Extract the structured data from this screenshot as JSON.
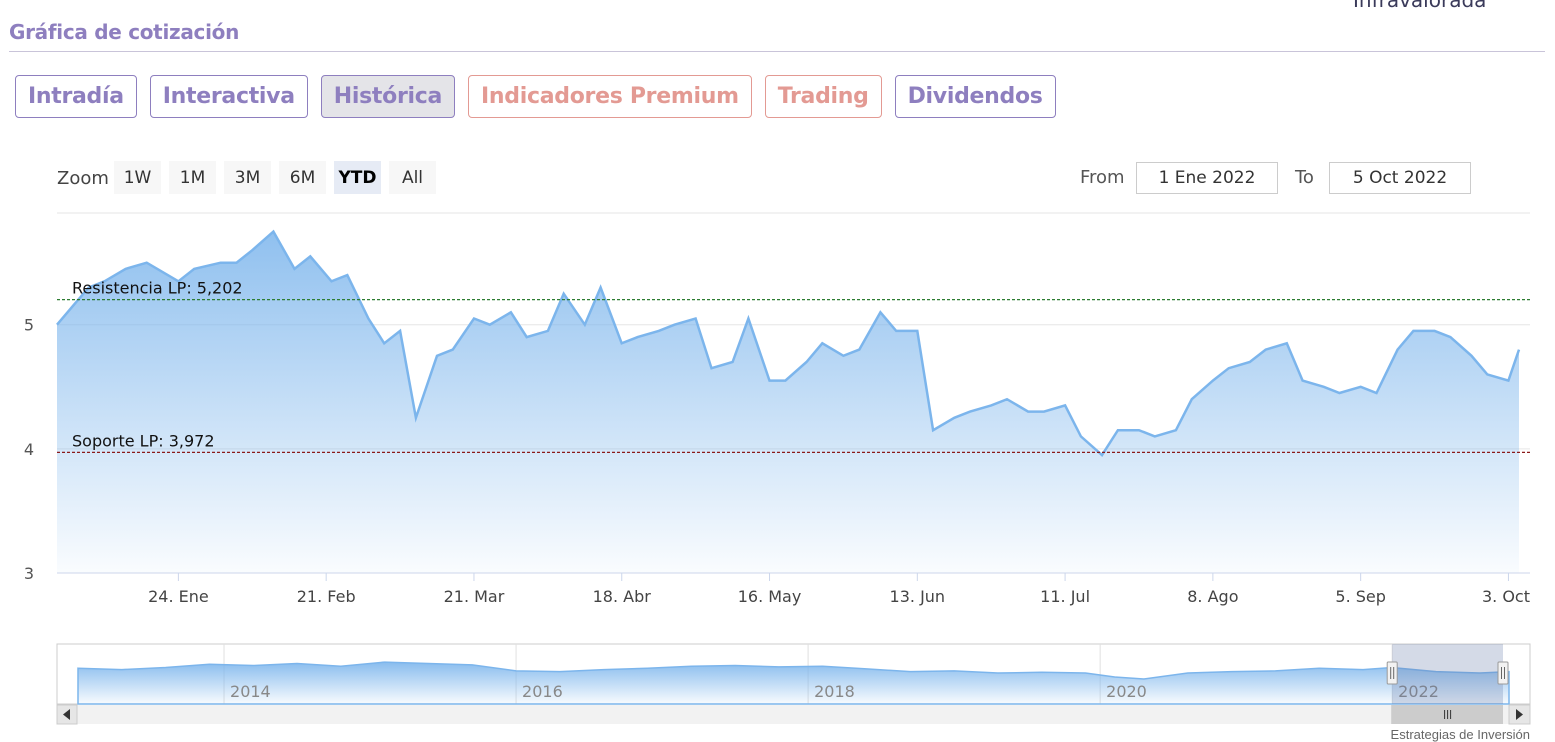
{
  "page": {
    "top_fragment": "Infravalorada",
    "section_title": "Gráfica de cotización",
    "credit": "Estrategias de Inversión"
  },
  "tabs": [
    {
      "label": "Intradía",
      "variant": "normal"
    },
    {
      "label": "Interactiva",
      "variant": "normal"
    },
    {
      "label": "Histórica",
      "variant": "active"
    },
    {
      "label": "Indicadores Premium",
      "variant": "premium"
    },
    {
      "label": "Trading",
      "variant": "premium"
    },
    {
      "label": "Dividendos",
      "variant": "normal"
    }
  ],
  "zoom": {
    "label": "Zoom",
    "buttons": [
      "1W",
      "1M",
      "3M",
      "6M",
      "YTD",
      "All"
    ],
    "selected": "YTD"
  },
  "range": {
    "from_label": "From",
    "from_value": "1 Ene 2022",
    "to_label": "To",
    "to_value": "5 Oct 2022"
  },
  "colors": {
    "accent": "#8e7fbf",
    "premium": "#e39a93",
    "series_line": "#7cb5ec",
    "resistance": "#2e7d32",
    "support": "#8b1a1a"
  },
  "chart_data": {
    "type": "area",
    "title": "",
    "xlabel": "",
    "ylabel": "",
    "ylim": [
      3,
      5.9
    ],
    "yticks": [
      3,
      4,
      5
    ],
    "x_ticks": [
      {
        "label": "24. Ene",
        "day": 23
      },
      {
        "label": "21. Feb",
        "day": 51
      },
      {
        "label": "21. Mar",
        "day": 79
      },
      {
        "label": "18. Abr",
        "day": 107
      },
      {
        "label": "16. May",
        "day": 135
      },
      {
        "label": "13. Jun",
        "day": 163
      },
      {
        "label": "11. Jul",
        "day": 191
      },
      {
        "label": "8. Ago",
        "day": 219
      },
      {
        "label": "5. Sep",
        "day": 247
      },
      {
        "label": "3. Oct",
        "day": 275
      }
    ],
    "x_range": [
      "2022-01-01",
      "2022-10-05"
    ],
    "series": [
      {
        "x": [
          "2022-01-01",
          "2022-01-04",
          "2022-01-07",
          "2022-01-10",
          "2022-01-14",
          "2022-01-18",
          "2022-01-24",
          "2022-01-27",
          "2022-02-01",
          "2022-02-04",
          "2022-02-07",
          "2022-02-11",
          "2022-02-15",
          "2022-02-18",
          "2022-02-22",
          "2022-02-25",
          "2022-03-01",
          "2022-03-04",
          "2022-03-07",
          "2022-03-10",
          "2022-03-14",
          "2022-03-17",
          "2022-03-21",
          "2022-03-24",
          "2022-03-28",
          "2022-03-31",
          "2022-04-04",
          "2022-04-07",
          "2022-04-11",
          "2022-04-14",
          "2022-04-18",
          "2022-04-21",
          "2022-04-25",
          "2022-04-28",
          "2022-05-02",
          "2022-05-05",
          "2022-05-09",
          "2022-05-12",
          "2022-05-16",
          "2022-05-19",
          "2022-05-23",
          "2022-05-26",
          "2022-05-30",
          "2022-06-02",
          "2022-06-06",
          "2022-06-09",
          "2022-06-13",
          "2022-06-16",
          "2022-06-20",
          "2022-06-23",
          "2022-06-27",
          "2022-06-30",
          "2022-07-04",
          "2022-07-07",
          "2022-07-11",
          "2022-07-14",
          "2022-07-18",
          "2022-07-21",
          "2022-07-25",
          "2022-07-28",
          "2022-08-01",
          "2022-08-04",
          "2022-08-08",
          "2022-08-11",
          "2022-08-15",
          "2022-08-18",
          "2022-08-22",
          "2022-08-25",
          "2022-08-29",
          "2022-09-01",
          "2022-09-05",
          "2022-09-08",
          "2022-09-12",
          "2022-09-15",
          "2022-09-19",
          "2022-09-22",
          "2022-09-26",
          "2022-09-29",
          "2022-10-03",
          "2022-10-05"
        ],
        "values": [
          5.0,
          5.15,
          5.3,
          5.35,
          5.45,
          5.5,
          5.35,
          5.45,
          5.5,
          5.5,
          5.6,
          5.75,
          5.45,
          5.55,
          5.35,
          5.4,
          5.05,
          4.85,
          4.95,
          4.25,
          4.75,
          4.8,
          5.05,
          5.0,
          5.1,
          4.9,
          4.95,
          5.25,
          5.0,
          5.3,
          4.85,
          4.9,
          4.95,
          5.0,
          5.05,
          4.65,
          4.7,
          5.05,
          4.55,
          4.55,
          4.7,
          4.85,
          4.75,
          4.8,
          5.1,
          4.95,
          4.95,
          4.15,
          4.25,
          4.3,
          4.35,
          4.4,
          4.3,
          4.3,
          4.35,
          4.1,
          3.95,
          4.15,
          4.15,
          4.1,
          4.15,
          4.4,
          4.55,
          4.65,
          4.7,
          4.8,
          4.85,
          4.55,
          4.5,
          4.45,
          4.5,
          4.45,
          4.8,
          4.95,
          4.95,
          4.9,
          4.75,
          4.6,
          4.55,
          4.8
        ]
      }
    ],
    "plot_lines": [
      {
        "label": "Resistencia LP: 5,202",
        "value": 5.202,
        "style": "dashed"
      },
      {
        "label": "Soporte LP: 3,972",
        "value": 3.972,
        "style": "dashed"
      }
    ],
    "navigator": {
      "type": "area",
      "x_labels": [
        "2014",
        "2016",
        "2018",
        "2020",
        "2022"
      ],
      "x_range": [
        2013.0,
        2022.8
      ],
      "selection": [
        "2022-01-01",
        "2022-10-05"
      ],
      "series": {
        "x": [
          2013.0,
          2013.3,
          2013.6,
          2013.9,
          2014.2,
          2014.5,
          2014.8,
          2015.1,
          2015.4,
          2015.7,
          2016.0,
          2016.3,
          2016.6,
          2016.9,
          2017.2,
          2017.5,
          2017.8,
          2018.1,
          2018.4,
          2018.7,
          2019.0,
          2019.3,
          2019.6,
          2019.9,
          2020.1,
          2020.3,
          2020.6,
          2020.9,
          2021.2,
          2021.5,
          2021.8,
          2022.0,
          2022.3,
          2022.6,
          2022.8
        ],
        "values": [
          5.3,
          5.1,
          5.4,
          5.9,
          5.7,
          6.0,
          5.6,
          6.2,
          6.0,
          5.8,
          4.9,
          4.8,
          5.1,
          5.3,
          5.6,
          5.7,
          5.5,
          5.6,
          5.2,
          4.8,
          4.9,
          4.6,
          4.7,
          4.6,
          4.0,
          3.7,
          4.6,
          4.8,
          4.9,
          5.3,
          5.1,
          5.4,
          4.8,
          4.6,
          4.8
        ]
      }
    }
  }
}
